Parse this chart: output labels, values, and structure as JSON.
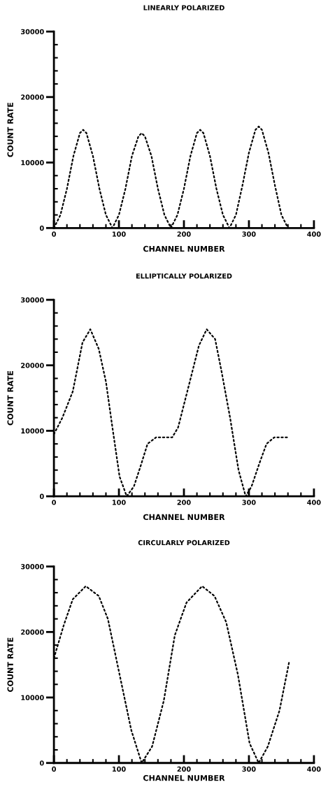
{
  "chart_data": [
    {
      "type": "line",
      "title": "LINEARLY POLARIZED",
      "xlabel": "CHANNEL NUMBER",
      "ylabel": "COUNT RATE",
      "line_style": "dotted",
      "marker": "none",
      "grid": false,
      "xlim": [
        0,
        400
      ],
      "xticks": [
        0,
        100,
        200,
        300,
        400
      ],
      "ylim": [
        0,
        30000
      ],
      "yticks": [
        0,
        10000,
        20000,
        30000
      ],
      "series": [
        {
          "color": "#000000",
          "x": [
            0,
            10,
            20,
            30,
            40,
            45,
            50,
            60,
            70,
            80,
            90,
            100,
            110,
            120,
            130,
            135,
            140,
            150,
            160,
            170,
            180,
            190,
            200,
            210,
            220,
            225,
            230,
            240,
            250,
            260,
            270,
            280,
            290,
            300,
            310,
            315,
            320,
            330,
            340,
            350,
            360
          ],
          "values": [
            0,
            2000,
            6000,
            11000,
            14500,
            15000,
            14500,
            11000,
            6000,
            2000,
            0,
            2000,
            6000,
            11000,
            14000,
            14500,
            14000,
            11000,
            6000,
            2000,
            0,
            2000,
            6000,
            11000,
            14500,
            15000,
            14500,
            11000,
            6000,
            2000,
            0,
            2000,
            6500,
            11500,
            15000,
            15500,
            15000,
            11500,
            6500,
            2000,
            0
          ]
        }
      ]
    },
    {
      "type": "line",
      "title": "ELLIPTICALLY POLARIZED",
      "xlabel": "CHANNEL NUMBER",
      "ylabel": "COUNT RATE",
      "line_style": "dotted",
      "marker": "none",
      "grid": false,
      "xlim": [
        0,
        400
      ],
      "xticks": [
        0,
        100,
        200,
        300,
        400
      ],
      "ylim": [
        0,
        30000
      ],
      "yticks": [
        0,
        10000,
        20000,
        30000
      ],
      "series": [
        {
          "color": "#000000",
          "x": [
            0,
            13,
            29,
            44,
            56,
            69,
            80,
            90,
            101,
            112,
            123,
            133,
            144,
            157,
            173,
            182,
            191,
            209,
            223,
            235,
            248,
            258,
            271,
            284,
            295,
            304,
            316,
            327,
            339,
            352,
            361
          ],
          "values": [
            9500,
            12000,
            16000,
            23500,
            25500,
            22500,
            17500,
            10500,
            3000,
            0,
            1500,
            4500,
            8000,
            9000,
            9000,
            9000,
            10500,
            17500,
            23000,
            25500,
            24000,
            19000,
            12000,
            4000,
            0,
            1500,
            5000,
            8000,
            9000,
            9000,
            9000
          ]
        }
      ]
    },
    {
      "type": "line",
      "title": "CIRCULARLY POLARIZED",
      "xlabel": "CHANNEL NUMBER",
      "ylabel": "COUNT RATE",
      "line_style": "dotted",
      "marker": "none",
      "grid": false,
      "xlim": [
        0,
        400
      ],
      "xticks": [
        0,
        100,
        200,
        300,
        400
      ],
      "ylim": [
        0,
        30000
      ],
      "yticks": [
        0,
        10000,
        20000,
        30000
      ],
      "series": [
        {
          "color": "#000000",
          "x": [
            0,
            15,
            29,
            49,
            69,
            83,
            101,
            119,
            135,
            151,
            169,
            186,
            204,
            228,
            247,
            265,
            283,
            301,
            315,
            329,
            347,
            362
          ],
          "values": [
            16000,
            21000,
            25000,
            27000,
            25500,
            22000,
            13500,
            5000,
            0,
            2500,
            9500,
            19500,
            24500,
            27000,
            25500,
            21500,
            13500,
            3000,
            0,
            2500,
            8000,
            15500
          ]
        }
      ]
    }
  ]
}
